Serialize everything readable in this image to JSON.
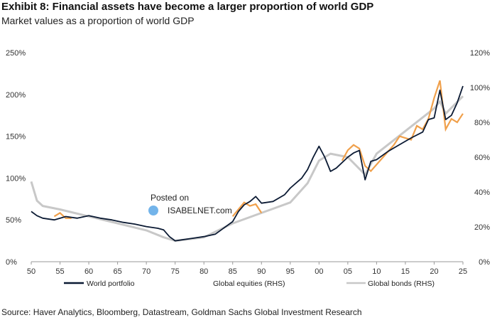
{
  "header": {
    "title": "Exhibit 8: Financial assets have become a larger proportion of world GDP",
    "subtitle": "Market values as a proportion of world GDP"
  },
  "source": "Source: Haver Analytics, Bloomberg, Datastream, Goldman Sachs Global Investment Research",
  "watermark": {
    "line1": "Posted on",
    "line2": "ISABELNET.com"
  },
  "colors": {
    "world_portfolio": "#0b1a33",
    "global_equities": "#f0a04b",
    "global_bonds": "#c8c8c8"
  },
  "chart_data": {
    "type": "line",
    "x_tick_labels": [
      "50",
      "55",
      "60",
      "65",
      "70",
      "75",
      "80",
      "85",
      "90",
      "95",
      "00",
      "05",
      "10",
      "15",
      "20",
      "25"
    ],
    "y_left_ticks": [
      "0%",
      "50%",
      "100%",
      "150%",
      "200%",
      "250%"
    ],
    "y_right_ticks": [
      "0%",
      "20%",
      "40%",
      "60%",
      "80%",
      "100%",
      "120%"
    ],
    "ylim_left": [
      0,
      250
    ],
    "ylim_right": [
      0,
      120
    ],
    "xlim": [
      1950,
      2025
    ],
    "legend": [
      "World portfolio",
      "Global equities (RHS)",
      "Global bonds (RHS)"
    ],
    "series": [
      {
        "name": "World portfolio",
        "axis": "left",
        "x": [
          1950,
          1951,
          1952,
          1954,
          1956,
          1958,
          1960,
          1962,
          1964,
          1966,
          1968,
          1970,
          1972,
          1973,
          1974,
          1975,
          1978,
          1980,
          1982,
          1983,
          1985,
          1986,
          1987,
          1988,
          1989,
          1990,
          1992,
          1994,
          1995,
          1997,
          1998,
          1999,
          2000,
          2001,
          2002,
          2003,
          2005,
          2006,
          2007,
          2008,
          2009,
          2010,
          2012,
          2014,
          2016,
          2018,
          2019,
          2020,
          2021,
          2022,
          2023,
          2024,
          2025
        ],
        "y": [
          60,
          55,
          52,
          50,
          54,
          52,
          55,
          52,
          50,
          47,
          45,
          42,
          40,
          38,
          30,
          25,
          28,
          30,
          33,
          38,
          48,
          60,
          68,
          72,
          78,
          70,
          72,
          80,
          88,
          100,
          110,
          125,
          138,
          125,
          108,
          112,
          125,
          130,
          133,
          98,
          120,
          122,
          132,
          140,
          148,
          155,
          170,
          172,
          205,
          170,
          175,
          190,
          210
        ]
      },
      {
        "name": "Global equities (RHS)",
        "axis": "right",
        "x": [
          1954,
          1955,
          1956,
          1957,
          1985,
          1986,
          1987,
          1988,
          1989,
          1990,
          2004,
          2005,
          2006,
          2007,
          2008,
          2009,
          2013,
          2014,
          2015,
          2016,
          2017,
          2018,
          2019,
          2020,
          2021,
          2022,
          2023,
          2024,
          2025
        ],
        "y": [
          26,
          28,
          25,
          25,
          26,
          30,
          34,
          32,
          33,
          28,
          58,
          64,
          67,
          65,
          55,
          52,
          67,
          72,
          71,
          70,
          78,
          76,
          82,
          94,
          104,
          76,
          82,
          80,
          85
        ]
      },
      {
        "name": "Global bonds (RHS)",
        "axis": "right",
        "x": [
          1950,
          1951,
          1952,
          1955,
          1960,
          1965,
          1970,
          1973,
          1975,
          1980,
          1985,
          1990,
          1995,
          1998,
          2000,
          2002,
          2005,
          2008,
          2010,
          2015,
          2020,
          2021,
          2022,
          2025
        ],
        "y": [
          46,
          35,
          32,
          30,
          26,
          22,
          18,
          14,
          12,
          14,
          22,
          28,
          34,
          45,
          58,
          62,
          60,
          50,
          62,
          75,
          88,
          92,
          85,
          95
        ]
      }
    ]
  }
}
